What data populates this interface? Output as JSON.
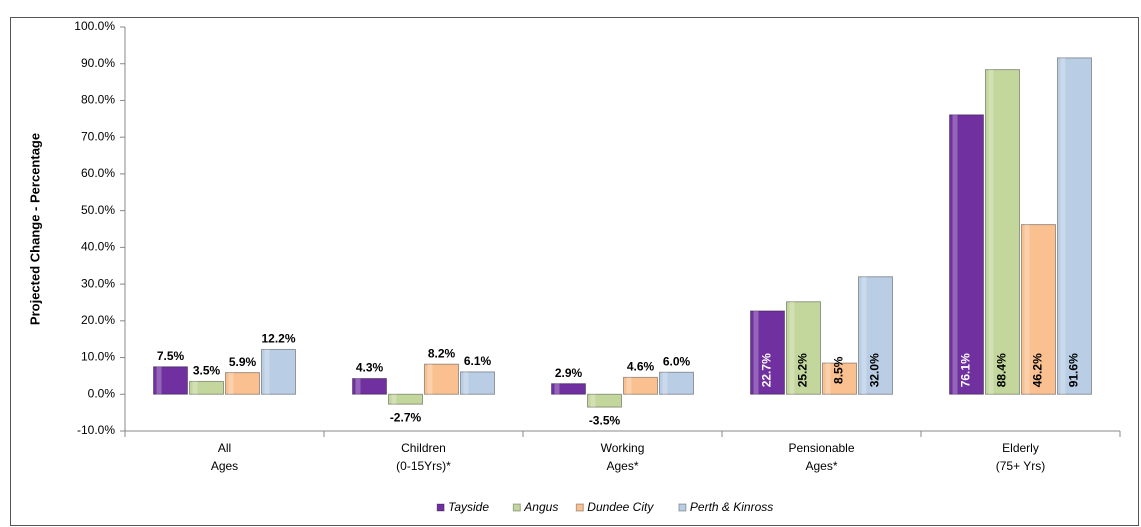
{
  "chart_data": {
    "type": "bar",
    "y_label": "Projected Change - Percentage",
    "categories": [
      "All\nAges",
      "Children\n(0-15Yrs)*",
      "Working\nAges*",
      "Pensionable\nAges*",
      "Elderly\n(75+ Yrs)"
    ],
    "series": [
      {
        "name": "Tayside",
        "color": "#7030a0",
        "values": [
          7.5,
          4.3,
          2.9,
          22.7,
          76.1
        ],
        "value_labels": [
          "7.5%",
          "4.3%",
          "2.9%",
          "22.7%",
          "76.1%"
        ]
      },
      {
        "name": "Angus",
        "color": "#c3d69b",
        "values": [
          3.5,
          -2.7,
          -3.5,
          25.2,
          88.4
        ],
        "value_labels": [
          "3.5%",
          "-2.7%",
          "-3.5%",
          "25.2%",
          "88.4%"
        ]
      },
      {
        "name": "Dundee City",
        "color": "#fac090",
        "values": [
          5.9,
          8.2,
          4.6,
          8.5,
          46.2
        ],
        "value_labels": [
          "5.9%",
          "8.2%",
          "4.6%",
          "8.5%",
          "46.2%"
        ]
      },
      {
        "name": "Perth & Kinross",
        "color": "#b9cde5",
        "values": [
          12.2,
          6.1,
          6.0,
          32.0,
          91.6
        ],
        "value_labels": [
          "12.2%",
          "6.1%",
          "6.0%",
          "32.0%",
          "91.6%"
        ]
      }
    ],
    "ylim": [
      -10,
      100
    ],
    "yticks": [
      {
        "value": -10,
        "label": "-10.0%"
      },
      {
        "value": 0,
        "label": "0.0%"
      },
      {
        "value": 10,
        "label": "10.0%"
      },
      {
        "value": 20,
        "label": "20.0%"
      },
      {
        "value": 30,
        "label": "30.0%"
      },
      {
        "value": 40,
        "label": "40.0%"
      },
      {
        "value": 50,
        "label": "50.0%"
      },
      {
        "value": 60,
        "label": "60.0%"
      },
      {
        "value": 70,
        "label": "70.0%"
      },
      {
        "value": 80,
        "label": "80.0%"
      },
      {
        "value": 90,
        "label": "90.0%"
      },
      {
        "value": 100,
        "label": "100.0%"
      }
    ],
    "grid": false,
    "legend": "bottom"
  }
}
